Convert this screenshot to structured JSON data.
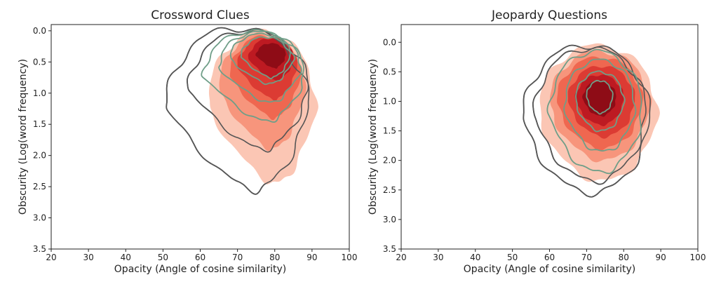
{
  "chart_data": [
    {
      "type": "kde-contour",
      "title": "Crossword Clues",
      "xlabel": "Opacity (Angle of cosine similarity)",
      "ylabel": "Obscurity (Log(word frequency)",
      "xlim": [
        20,
        100
      ],
      "ylim": [
        3.5,
        -0.1
      ],
      "y_inverted": true,
      "xticks": [
        "20",
        "30",
        "40",
        "50",
        "60",
        "70",
        "80",
        "90",
        "100"
      ],
      "yticks": [
        "0.0",
        "0.5",
        "1.0",
        "1.5",
        "2.0",
        "2.5",
        "3.0",
        "3.5"
      ],
      "colors": {
        "fill_levels": [
          "#fbc6b4",
          "#f7957c",
          "#ef6750",
          "#dc3b33",
          "#bd1a22",
          "#8e0c16"
        ],
        "outer_line": "#555555",
        "inner_line": "#6f9e88"
      },
      "filled_density": {
        "center": [
          79,
          0.45
        ],
        "levels": [
          {
            "x": [
              62,
              91
            ],
            "y": [
              0.0,
              2.45
            ]
          },
          {
            "x": [
              65,
              88
            ],
            "y": [
              0.05,
              1.9
            ]
          },
          {
            "x": [
              68,
              87
            ],
            "y": [
              0.08,
              1.4
            ]
          },
          {
            "x": [
              70,
              86
            ],
            "y": [
              0.1,
              1.1
            ]
          },
          {
            "x": [
              73,
              85
            ],
            "y": [
              0.12,
              0.8
            ]
          },
          {
            "x": [
              75,
              83
            ],
            "y": [
              0.2,
              0.6
            ]
          }
        ]
      },
      "outer_density_contours": [
        {
          "x": [
            51,
            89
          ],
          "y": [
            -0.05,
            2.55
          ]
        },
        {
          "x": [
            57,
            89
          ],
          "y": [
            0.0,
            1.9
          ]
        }
      ],
      "inner_density_contours": [
        {
          "x": [
            61,
            88
          ],
          "y": [
            0.0,
            1.45
          ]
        },
        {
          "x": [
            65,
            87
          ],
          "y": [
            0.02,
            1.15
          ]
        },
        {
          "x": [
            68,
            85
          ],
          "y": [
            0.05,
            0.85
          ]
        },
        {
          "x": [
            71,
            84
          ],
          "y": [
            0.1,
            0.75
          ]
        }
      ]
    },
    {
      "type": "kde-contour",
      "title": "Jeopardy Questions",
      "xlabel": "Opacity (Angle of cosine similarity)",
      "ylabel": "Obscurity (Log(word frequency)",
      "xlim": [
        20,
        100
      ],
      "ylim": [
        3.5,
        -0.3
      ],
      "y_inverted": true,
      "xticks": [
        "20",
        "30",
        "40",
        "50",
        "60",
        "70",
        "80",
        "90",
        "100"
      ],
      "yticks": [
        "0.0",
        "0.5",
        "1.0",
        "1.5",
        "2.0",
        "2.5",
        "3.0",
        "3.5"
      ],
      "colors": {
        "fill_levels": [
          "#fbc6b4",
          "#f7957c",
          "#ef6750",
          "#dc3b33",
          "#bd1a22",
          "#8e0c16"
        ],
        "outer_line": "#555555",
        "inner_line": "#6f9e88"
      },
      "filled_density": {
        "center": [
          73,
          1.0
        ],
        "levels": [
          {
            "x": [
              57,
              89
            ],
            "y": [
              0.05,
              2.35
            ]
          },
          {
            "x": [
              60,
              87
            ],
            "y": [
              0.15,
              2.0
            ]
          },
          {
            "x": [
              62,
              85
            ],
            "y": [
              0.25,
              1.8
            ]
          },
          {
            "x": [
              65,
              83
            ],
            "y": [
              0.4,
              1.6
            ]
          },
          {
            "x": [
              67,
              80
            ],
            "y": [
              0.55,
              1.4
            ]
          },
          {
            "x": [
              69,
              78
            ],
            "y": [
              0.65,
              1.25
            ]
          }
        ]
      },
      "outer_density_contours": [
        {
          "x": [
            53,
            87
          ],
          "y": [
            0.05,
            2.55
          ]
        },
        {
          "x": [
            56,
            86
          ],
          "y": [
            0.1,
            2.35
          ]
        }
      ],
      "inner_density_contours": [
        {
          "x": [
            60,
            85
          ],
          "y": [
            0.15,
            2.2
          ]
        },
        {
          "x": [
            64,
            83
          ],
          "y": [
            0.3,
            1.85
          ]
        },
        {
          "x": [
            67,
            80
          ],
          "y": [
            0.5,
            1.5
          ]
        },
        {
          "x": [
            70,
            77
          ],
          "y": [
            0.65,
            1.2
          ]
        }
      ]
    }
  ]
}
